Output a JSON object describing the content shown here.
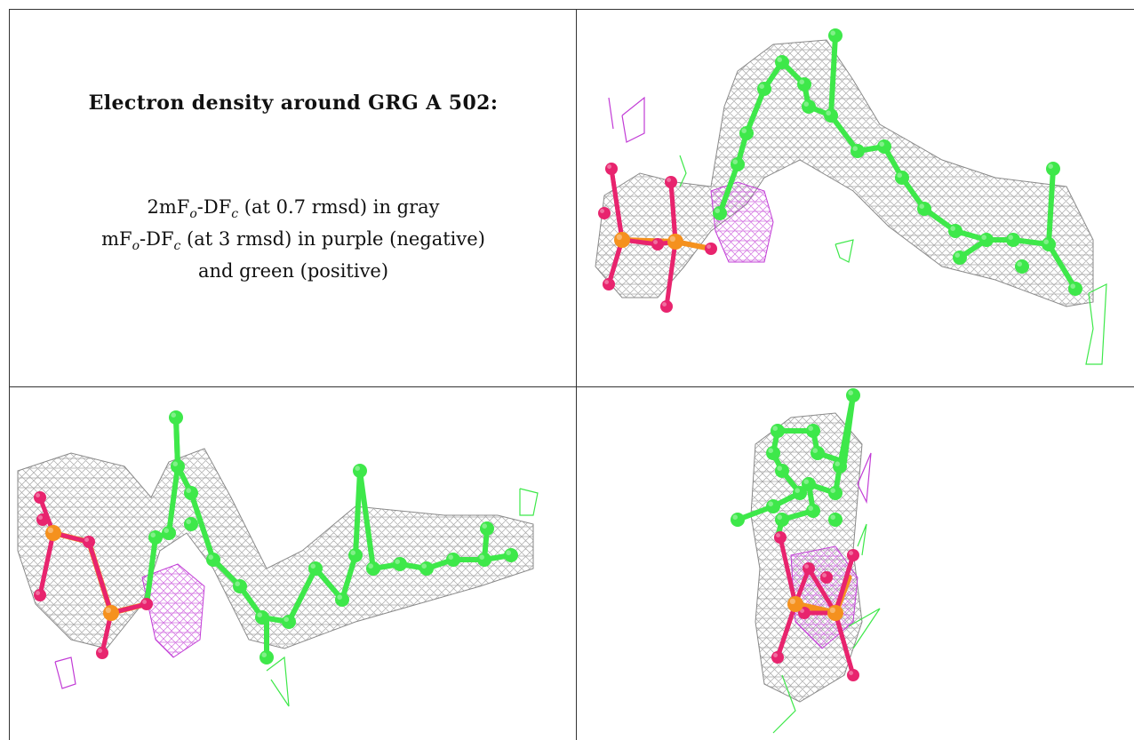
{
  "caption": {
    "title": "Electron density around GRG A 502:",
    "line1": {
      "prefix": "2mF",
      "sub1": "o",
      "mid": "-DF",
      "sub2": "c",
      "suffix": " (at 0.7 rmsd) in gray"
    },
    "line2": {
      "prefix": "mF",
      "sub1": "o",
      "mid": "-DF",
      "sub2": "c",
      "suffix": " (at 3 rmsd) in purple (negative)"
    },
    "line3": "and green (positive)"
  },
  "colors": {
    "carbon": "#3ee84a",
    "phosphorus": "#f5911e",
    "oxygen": "#e8246e",
    "mesh_2fofc": "#8a8a8a",
    "mesh_negative": "#c23cd6",
    "mesh_positive": "#3ee84a",
    "grid_line": "#333333"
  },
  "panels": [
    {
      "id": "view-1"
    },
    {
      "id": "view-2"
    },
    {
      "id": "view-3"
    }
  ]
}
